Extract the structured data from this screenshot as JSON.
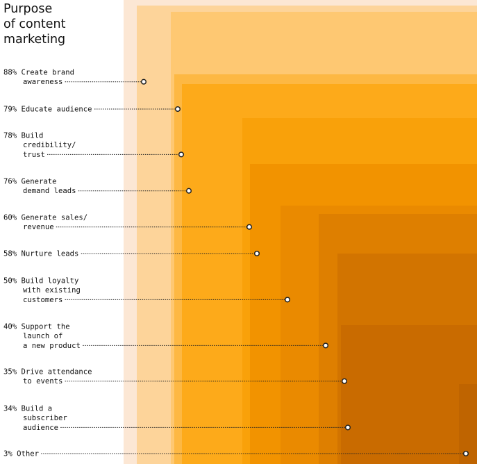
{
  "title": "Purpose\nof content\nmarketing",
  "title_lines": [
    "Purpose",
    "of content",
    "marketing"
  ],
  "colors": {
    "text": "#111111",
    "leader": "#222222",
    "squares": [
      "#FCE7D4",
      "#FDD49A",
      "#FEC872",
      "#FDB843",
      "#FDAA1A",
      "#F9A10A",
      "#F29300",
      "#EA8A00",
      "#DE7F00",
      "#D27400",
      "#C96B00",
      "#BF6400"
    ]
  },
  "chart_data": {
    "type": "nested-squares",
    "title": "Purpose of content marketing",
    "unit": "%",
    "items": [
      {
        "value": 88,
        "label_lines": [
          "88% Create brand",
          "awareness"
        ],
        "label": "Create brand awareness"
      },
      {
        "value": 79,
        "label_lines": [
          "79% Educate audience"
        ],
        "label": "Educate audience"
      },
      {
        "value": 78,
        "label_lines": [
          "78% Build",
          "credibility/",
          "trust"
        ],
        "label": "Build credibility/trust"
      },
      {
        "value": 76,
        "label_lines": [
          "76% Generate",
          "demand leads"
        ],
        "label": "Generate demand leads"
      },
      {
        "value": 60,
        "label_lines": [
          "60% Generate sales/",
          "revenue"
        ],
        "label": "Generate sales/revenue"
      },
      {
        "value": 58,
        "label_lines": [
          "58% Nurture leads"
        ],
        "label": "Nurture leads"
      },
      {
        "value": 50,
        "label_lines": [
          "50% Build loyalty",
          "with existing",
          "customers"
        ],
        "label": "Build loyalty with existing customers"
      },
      {
        "value": 40,
        "label_lines": [
          "40% Support the",
          "launch of",
          "a new product"
        ],
        "label": "Support the launch of a new product"
      },
      {
        "value": 35,
        "label_lines": [
          "35% Drive attendance",
          "to events"
        ],
        "label": "Drive attendance to events"
      },
      {
        "value": 34,
        "label_lines": [
          "34% Build a",
          "subscriber",
          "audience"
        ],
        "label": "Build a subscriber audience"
      },
      {
        "value": 3,
        "label_lines": [
          "3% Other"
        ],
        "label": "Other"
      }
    ]
  }
}
